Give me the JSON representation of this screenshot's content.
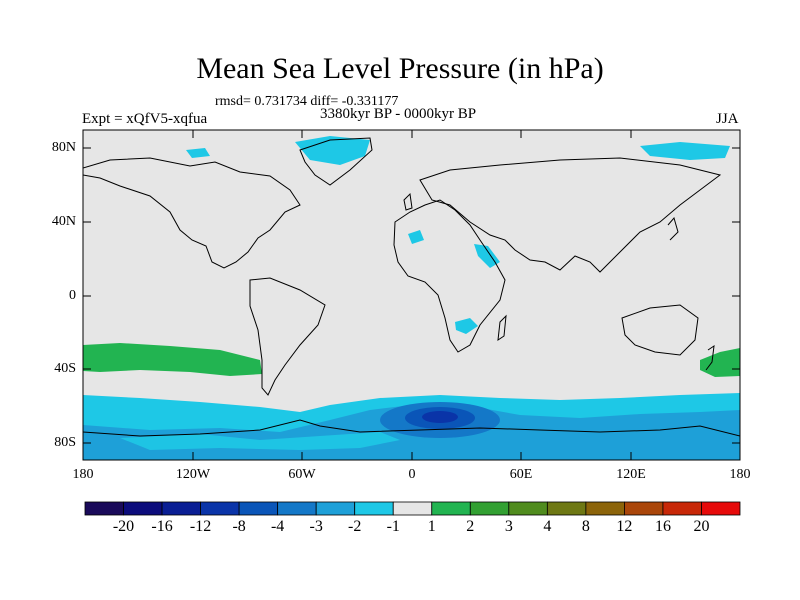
{
  "title": "Mean Sea Level Pressure (in hPa)",
  "stats": "rmsd= 0.731734 diff= -0.331177",
  "experiment": "Expt = xQfV5-xqfua",
  "period": "3380kyr BP - 0000kyr BP",
  "season": "JJA",
  "map": {
    "lat_ticks": [
      "80N",
      "40N",
      "0",
      "40S",
      "80S"
    ],
    "lon_ticks": [
      "180",
      "120W",
      "60W",
      "0",
      "60E",
      "120E",
      "180"
    ]
  },
  "colorbar": {
    "labels": [
      "-20",
      "-16",
      "-12",
      "-8",
      "-4",
      "-3",
      "-2",
      "-1",
      "1",
      "2",
      "3",
      "4",
      "8",
      "12",
      "16",
      "20"
    ],
    "colors": [
      "#1a0a5a",
      "#0c0c7c",
      "#0a1e94",
      "#0a34a8",
      "#0a55b8",
      "#1478c8",
      "#1ea0d8",
      "#1ec8e6",
      "#e6e6e6",
      "#22b451",
      "#32a032",
      "#508c1e",
      "#6e7814",
      "#8c640a",
      "#aa460a",
      "#c82808",
      "#e60a0a"
    ]
  }
}
